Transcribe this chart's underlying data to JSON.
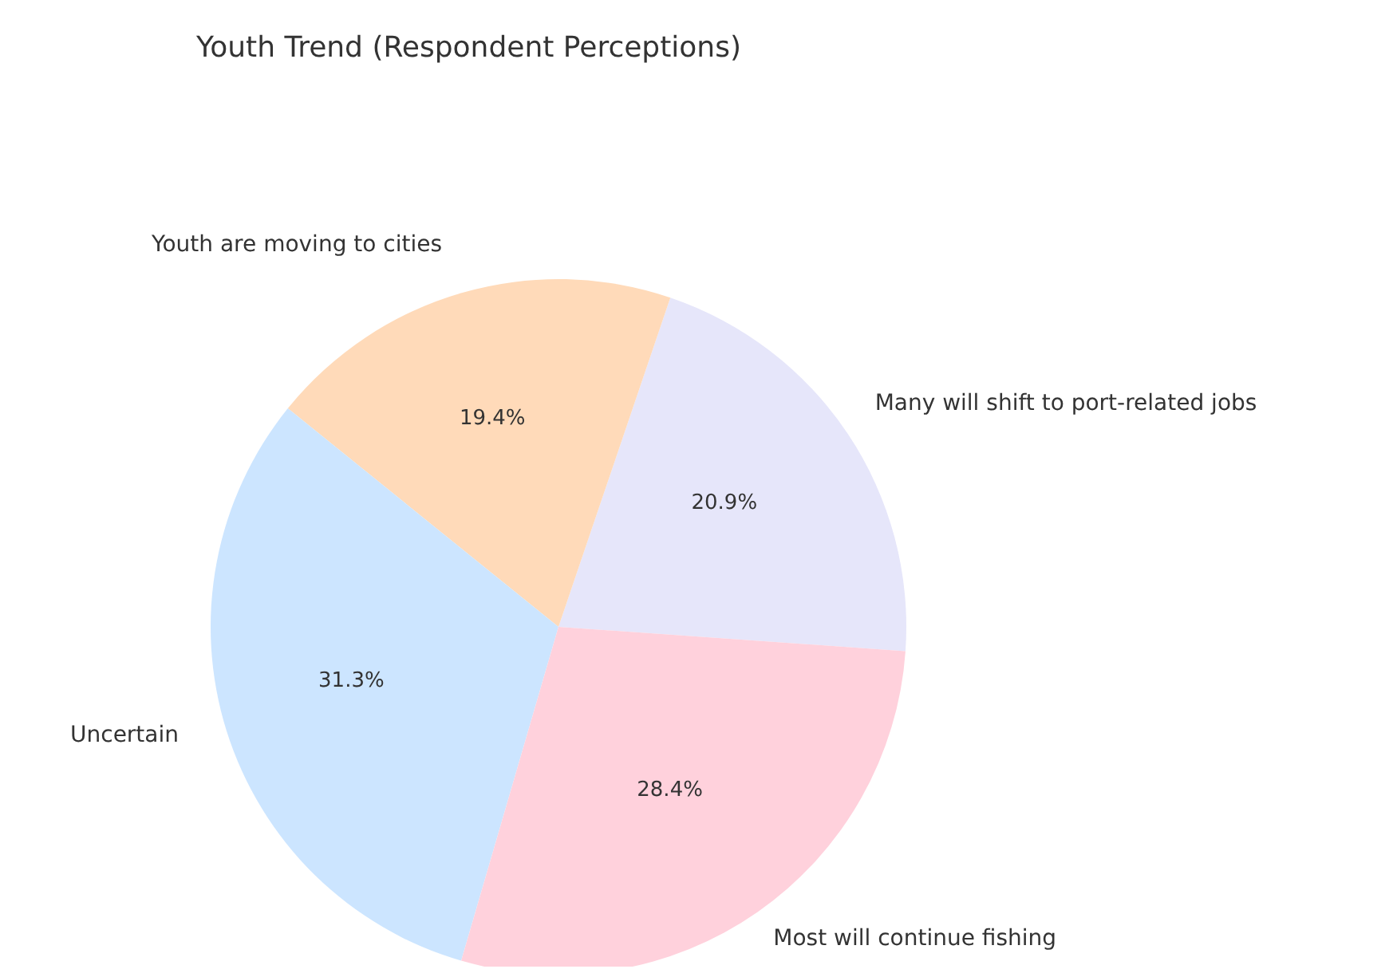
{
  "chart_data": {
    "type": "pie",
    "title": "Youth Trend (Respondent Perceptions)",
    "categories": [
      "Many will shift to port-related jobs",
      "Youth are moving to cities",
      "Uncertain",
      "Most will continue fishing"
    ],
    "values": [
      20.9,
      19.4,
      31.3,
      28.4
    ],
    "value_labels": [
      "20.9%",
      "19.4%",
      "31.3%",
      "28.4%"
    ],
    "colors": [
      "#e6e6fa",
      "#ffdab9",
      "#cce5ff",
      "#ffd1dc"
    ],
    "legend": false
  }
}
